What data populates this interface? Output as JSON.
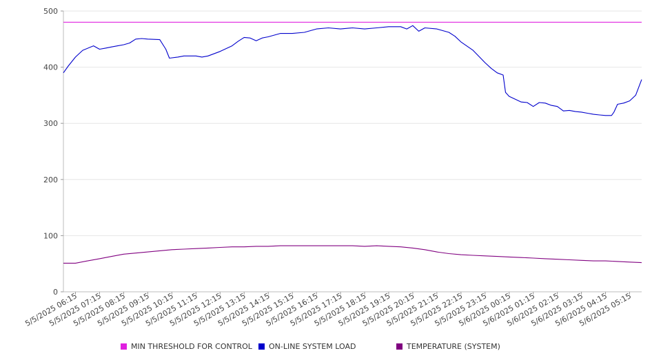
{
  "chart_data": {
    "type": "line",
    "title": "",
    "xlabel": "",
    "ylabel": "",
    "ylim": [
      0,
      500
    ],
    "yticks": [
      0,
      100,
      200,
      300,
      400,
      500
    ],
    "grid": true,
    "legend_position": "bottom",
    "x_tick_labels": [
      "5/5/2025 06:15",
      "5/5/2025 07:15",
      "5/5/2025 08:15",
      "5/5/2025 09:15",
      "5/5/2025 10:15",
      "5/5/2025 11:15",
      "5/5/2025 12:15",
      "5/5/2025 13:15",
      "5/5/2025 14:15",
      "5/5/2025 15:15",
      "5/5/2025 16:15",
      "5/5/2025 17:15",
      "5/5/2025 18:15",
      "5/5/2025 19:15",
      "5/5/2025 20:15",
      "5/5/2025 21:15",
      "5/5/2025 22:15",
      "5/5/2025 23:15",
      "5/6/2025 00:15",
      "5/6/2025 01:15",
      "5/6/2025 02:15",
      "5/6/2025 03:15",
      "5/6/2025 04:15",
      "5/6/2025 05:15"
    ],
    "x_hours_range": [
      0,
      24
    ],
    "series": [
      {
        "name": "MIN THRESHOLD FOR CONTROL",
        "color": "#e020e0",
        "points": [
          [
            0,
            480
          ],
          [
            24,
            480
          ]
        ]
      },
      {
        "name": "ON-LINE SYSTEM LOAD",
        "color": "#0000cc",
        "points": [
          [
            0.0,
            390
          ],
          [
            0.2,
            402
          ],
          [
            0.5,
            418
          ],
          [
            0.8,
            430
          ],
          [
            1.25,
            438
          ],
          [
            1.5,
            432
          ],
          [
            1.75,
            434
          ],
          [
            2.0,
            436
          ],
          [
            2.25,
            438
          ],
          [
            2.5,
            440
          ],
          [
            2.75,
            443
          ],
          [
            3.0,
            450
          ],
          [
            3.25,
            451
          ],
          [
            3.5,
            450
          ],
          [
            4.0,
            449
          ],
          [
            4.25,
            432
          ],
          [
            4.4,
            416
          ],
          [
            4.75,
            418
          ],
          [
            5.0,
            420
          ],
          [
            5.5,
            420
          ],
          [
            5.75,
            418
          ],
          [
            6.0,
            420
          ],
          [
            6.5,
            428
          ],
          [
            7.0,
            438
          ],
          [
            7.25,
            446
          ],
          [
            7.5,
            453
          ],
          [
            7.75,
            452
          ],
          [
            8.0,
            447
          ],
          [
            8.25,
            452
          ],
          [
            8.5,
            454
          ],
          [
            9.0,
            460
          ],
          [
            9.5,
            460
          ],
          [
            10.0,
            462
          ],
          [
            10.5,
            468
          ],
          [
            11.0,
            470
          ],
          [
            11.5,
            468
          ],
          [
            12.0,
            470
          ],
          [
            12.5,
            468
          ],
          [
            13.0,
            470
          ],
          [
            13.5,
            472
          ],
          [
            14.0,
            472
          ],
          [
            14.25,
            468
          ],
          [
            14.5,
            474
          ],
          [
            14.75,
            464
          ],
          [
            15.0,
            470
          ],
          [
            15.5,
            468
          ],
          [
            16.0,
            462
          ],
          [
            16.25,
            455
          ],
          [
            16.5,
            445
          ],
          [
            17.0,
            430
          ],
          [
            17.5,
            408
          ],
          [
            17.75,
            398
          ],
          [
            18.0,
            390
          ],
          [
            18.25,
            386
          ],
          [
            18.35,
            355
          ],
          [
            18.5,
            348
          ],
          [
            18.75,
            343
          ],
          [
            19.0,
            338
          ],
          [
            19.25,
            337
          ],
          [
            19.5,
            330
          ],
          [
            19.75,
            337
          ],
          [
            20.0,
            336
          ],
          [
            20.25,
            332
          ],
          [
            20.5,
            330
          ],
          [
            20.75,
            322
          ],
          [
            21.0,
            323
          ],
          [
            21.25,
            321
          ],
          [
            21.5,
            320
          ],
          [
            21.75,
            318
          ],
          [
            22.0,
            316
          ],
          [
            22.25,
            315
          ],
          [
            22.5,
            314
          ],
          [
            22.75,
            314
          ],
          [
            22.85,
            320
          ],
          [
            23.0,
            334
          ],
          [
            23.25,
            336
          ],
          [
            23.5,
            340
          ],
          [
            23.75,
            350
          ],
          [
            24.0,
            378
          ]
        ]
      },
      {
        "name": "TEMPERATURE (SYSTEM)",
        "color": "#800080",
        "points": [
          [
            0.0,
            51
          ],
          [
            0.5,
            51
          ],
          [
            1.0,
            55
          ],
          [
            1.5,
            59
          ],
          [
            2.0,
            63
          ],
          [
            2.5,
            67
          ],
          [
            3.0,
            69
          ],
          [
            3.5,
            71
          ],
          [
            4.0,
            73
          ],
          [
            4.5,
            75
          ],
          [
            5.0,
            76
          ],
          [
            5.5,
            77
          ],
          [
            6.0,
            78
          ],
          [
            6.5,
            79
          ],
          [
            7.0,
            80
          ],
          [
            7.5,
            80
          ],
          [
            8.0,
            81
          ],
          [
            8.5,
            81
          ],
          [
            9.0,
            82
          ],
          [
            10.0,
            82
          ],
          [
            11.0,
            82
          ],
          [
            12.0,
            82
          ],
          [
            12.5,
            81
          ],
          [
            13.0,
            82
          ],
          [
            13.5,
            81
          ],
          [
            14.0,
            80
          ],
          [
            14.5,
            78
          ],
          [
            15.0,
            75
          ],
          [
            15.5,
            71
          ],
          [
            16.0,
            68
          ],
          [
            16.5,
            66
          ],
          [
            17.0,
            65
          ],
          [
            17.5,
            64
          ],
          [
            18.0,
            63
          ],
          [
            18.5,
            62
          ],
          [
            19.0,
            61
          ],
          [
            19.5,
            60
          ],
          [
            20.0,
            59
          ],
          [
            20.5,
            58
          ],
          [
            21.0,
            57
          ],
          [
            21.5,
            56
          ],
          [
            22.0,
            55
          ],
          [
            22.5,
            55
          ],
          [
            23.0,
            54
          ],
          [
            23.5,
            53
          ],
          [
            24.0,
            52
          ]
        ]
      }
    ]
  }
}
